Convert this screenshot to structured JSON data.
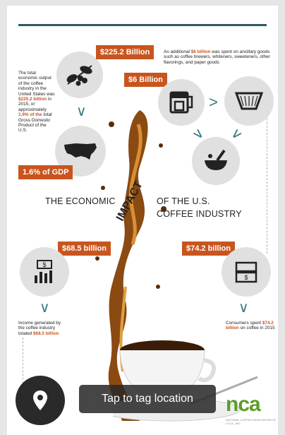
{
  "infographic": {
    "title_left": "THE ECONOMIC",
    "title_impact": "IMPACT",
    "title_right": "OF THE U.S.",
    "title_sub": "COFFEE INDUSTRY",
    "tag_225": "$225.2 Billion",
    "tag_6": "$6 Billion",
    "tag_gdp": "1.6% of GDP",
    "tag_68": "$68.5 billion",
    "tag_74": "$74.2 billion",
    "text_total_1": "The total economic output of the coffee industry in the United States was ",
    "text_total_hl1": "$225.2 billion",
    "text_total_2": " in 2015, or approximately ",
    "text_total_hl2": "1.6% of the",
    "text_total_3": " total Gross Domestic Product of the U.S.",
    "text_ancillary_1": "An additional ",
    "text_ancillary_hl": "$6 billion",
    "text_ancillary_2": " was spent on ancillary goods such as coffee brewers, whiteners, sweeteners, other flavorings, and paper goods",
    "text_income_1": "Income generated by the coffee industry totaled ",
    "text_income_hl": "$68.5 billion",
    "text_consumers_1": "Consumers spent ",
    "text_consumers_hl": "$74.2 billion",
    "text_consumers_2": " on coffee in 2015",
    "logo": "nca",
    "logo_sub": "NATIONAL COFFEE ASSOCIATION OF U.S.A., INC."
  },
  "overlay": {
    "pin_icon": "map-pin-icon",
    "tooltip": "Tap to tag location"
  },
  "colors": {
    "accent": "#c8551e",
    "teal": "#3a7d80",
    "green": "#5c9d2b"
  }
}
